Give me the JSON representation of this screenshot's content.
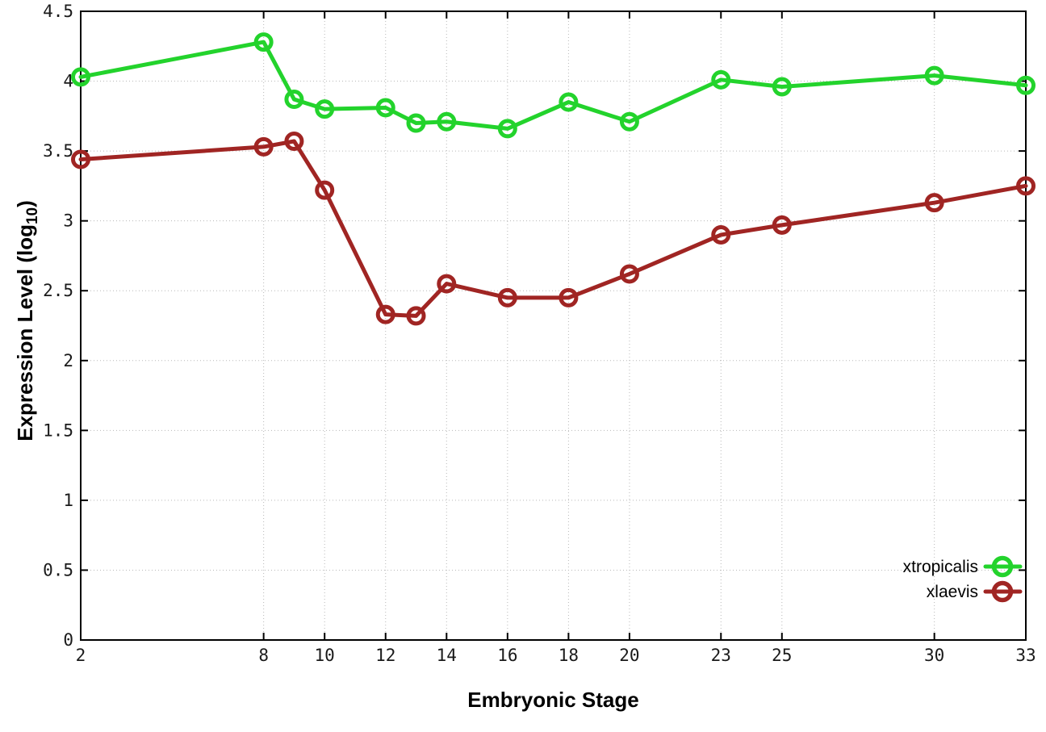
{
  "figure": {
    "background": "#ffffff",
    "axis_color": "#000000",
    "grid_color": "#b8b8b8"
  },
  "chart_data": {
    "type": "line",
    "title": "",
    "xlabel": "Embryonic Stage",
    "ylabel": "Expression Level (log10)",
    "ylabel_rich": {
      "main": "Expression Level (log",
      "sub": "10",
      "suffix": ")"
    },
    "x": [
      2,
      8,
      9,
      10,
      12,
      13,
      14,
      16,
      18,
      20,
      23,
      25,
      30,
      33
    ],
    "series": [
      {
        "name": "xtropicalis",
        "color": "#23d32c",
        "values": [
          4.03,
          4.28,
          3.87,
          3.8,
          3.81,
          3.7,
          3.71,
          3.66,
          3.85,
          3.71,
          4.01,
          3.96,
          4.04,
          3.97
        ]
      },
      {
        "name": "xlaevis",
        "color": "#a02523",
        "values": [
          3.44,
          3.53,
          3.57,
          3.22,
          2.33,
          2.32,
          2.55,
          2.45,
          2.45,
          2.62,
          2.9,
          2.97,
          3.13,
          3.25
        ]
      }
    ],
    "xlim": [
      2,
      33
    ],
    "ylim": [
      0,
      4.5
    ],
    "xticks": {
      "values": [
        2,
        8,
        10,
        12,
        14,
        16,
        18,
        20,
        23,
        25,
        30,
        33
      ],
      "labels": [
        "2",
        "8",
        "10",
        "12",
        "14",
        "16",
        "18",
        "20",
        "23",
        "25",
        "30",
        "33"
      ]
    },
    "yticks": {
      "values": [
        0,
        0.5,
        1,
        1.5,
        2,
        2.5,
        3,
        3.5,
        4,
        4.5
      ],
      "labels": [
        "0",
        "0.5",
        "1",
        "1.5",
        "2",
        "2.5",
        "3",
        "3.5",
        "4",
        "4.5"
      ]
    },
    "grid": true,
    "legend": {
      "position": "bottom-right",
      "entries": [
        "xtropicalis",
        "xlaevis"
      ]
    }
  }
}
